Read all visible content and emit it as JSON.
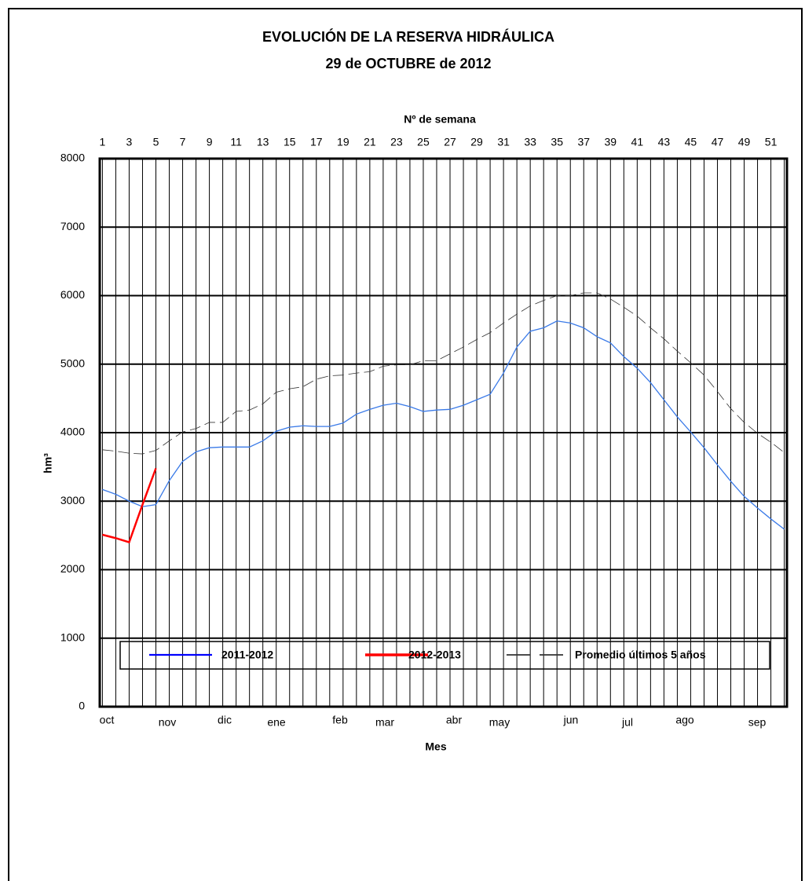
{
  "chart_data": {
    "type": "line",
    "title": "EVOLUCIÓN DE LA RESERVA HIDRÁULICA",
    "subtitle": "29 de OCTUBRE de 2012",
    "x2_label": "Nº de semana",
    "x_label": "Mes",
    "y_label": "hm³",
    "months": [
      "oct",
      "nov",
      "dic",
      "ene",
      "feb",
      "mar",
      "abr",
      "may",
      "jun",
      "jul",
      "ago",
      "sep"
    ],
    "x": [
      1,
      2,
      3,
      4,
      5,
      6,
      7,
      8,
      9,
      10,
      11,
      12,
      13,
      14,
      15,
      16,
      17,
      18,
      19,
      20,
      21,
      22,
      23,
      24,
      25,
      26,
      27,
      28,
      29,
      30,
      31,
      32,
      33,
      34,
      35,
      36,
      37,
      38,
      39,
      40,
      41,
      42,
      43,
      44,
      45,
      46,
      47,
      48,
      49,
      50,
      51,
      52
    ],
    "xlim": [
      0.8,
      52.2
    ],
    "xticks": [
      1,
      3,
      5,
      7,
      9,
      11,
      13,
      15,
      17,
      19,
      21,
      23,
      25,
      27,
      29,
      31,
      33,
      35,
      37,
      39,
      41,
      43,
      45,
      47,
      49,
      51
    ],
    "xminor_ticks": [
      2,
      4,
      6,
      8,
      10,
      12,
      14,
      16,
      18,
      20,
      22,
      24,
      26,
      28,
      30,
      32,
      34,
      36,
      38,
      40,
      42,
      44,
      46,
      48,
      50,
      52
    ],
    "ylim": [
      0,
      8000
    ],
    "yticks": [
      0,
      1000,
      2000,
      3000,
      4000,
      5000,
      6000,
      7000,
      8000
    ],
    "grid": true,
    "legend": "bottom",
    "series": [
      {
        "name": "2011-2012",
        "color": "#3a7ae8",
        "legend_color": "#0000ff",
        "dash": false,
        "width": 1.3,
        "values": [
          3170,
          3100,
          3000,
          2920,
          2950,
          3300,
          3580,
          3720,
          3780,
          3790,
          3790,
          3790,
          3880,
          4020,
          4080,
          4100,
          4090,
          4090,
          4140,
          4270,
          4340,
          4400,
          4430,
          4380,
          4310,
          4330,
          4340,
          4400,
          4480,
          4560,
          4870,
          5250,
          5480,
          5530,
          5630,
          5600,
          5530,
          5400,
          5310,
          5110,
          4940,
          4730,
          4480,
          4230,
          4010,
          3780,
          3530,
          3290,
          3070,
          2900,
          2740,
          2590
        ]
      },
      {
        "name": "2012-2013",
        "color": "#ff0000",
        "legend_color": "#ff0000",
        "dash": false,
        "width": 2.5,
        "values": [
          2510,
          2460,
          2400,
          2950,
          3480,
          null,
          null,
          null,
          null,
          null,
          null,
          null,
          null,
          null,
          null,
          null,
          null,
          null,
          null,
          null,
          null,
          null,
          null,
          null,
          null,
          null,
          null,
          null,
          null,
          null,
          null,
          null,
          null,
          null,
          null,
          null,
          null,
          null,
          null,
          null,
          null,
          null,
          null,
          null,
          null,
          null,
          null,
          null,
          null,
          null,
          null,
          null
        ]
      },
      {
        "name": "Promedio últimos 5 años",
        "color": "#333333",
        "legend_color": "#333333",
        "dash": true,
        "width": 0.8,
        "values": [
          3750,
          3730,
          3700,
          3690,
          3740,
          3880,
          4010,
          4060,
          4150,
          4150,
          4310,
          4330,
          4420,
          4590,
          4640,
          4670,
          4780,
          4830,
          4840,
          4870,
          4890,
          4970,
          4990,
          4990,
          5050,
          5050,
          5150,
          5250,
          5360,
          5460,
          5600,
          5730,
          5850,
          5930,
          6000,
          6000,
          6040,
          6040,
          5950,
          5830,
          5700,
          5530,
          5370,
          5190,
          5020,
          4840,
          4600,
          4350,
          4150,
          3990,
          3860,
          3710
        ]
      }
    ]
  }
}
